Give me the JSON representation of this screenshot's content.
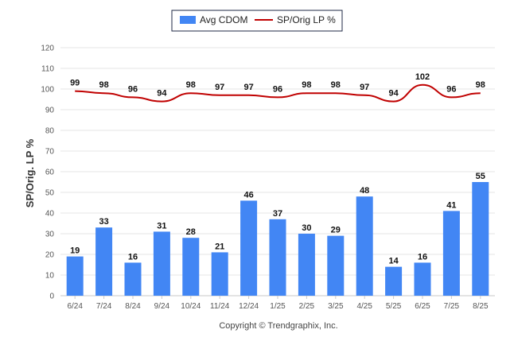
{
  "chart_data": {
    "type": "bar",
    "categories": [
      "6/24",
      "7/24",
      "8/24",
      "9/24",
      "10/24",
      "11/24",
      "12/24",
      "1/25",
      "2/25",
      "3/25",
      "4/25",
      "5/25",
      "6/25",
      "7/25",
      "8/25"
    ],
    "series": [
      {
        "name": "Avg CDOM",
        "type": "bar",
        "color": "#4286f4",
        "values": [
          19,
          33,
          16,
          31,
          28,
          21,
          46,
          37,
          30,
          29,
          48,
          14,
          16,
          41,
          55
        ]
      },
      {
        "name": "SP/Orig LP %",
        "type": "line",
        "color": "#c00000",
        "values": [
          99,
          98,
          96,
          94,
          98,
          97,
          97,
          96,
          98,
          98,
          97,
          94,
          102,
          96,
          98
        ]
      }
    ],
    "ylabel": "SP/Orig. LP %",
    "ylim": [
      0,
      120
    ],
    "yticks": [
      0,
      10,
      20,
      30,
      40,
      50,
      60,
      70,
      80,
      90,
      100,
      110,
      120
    ],
    "grid": true,
    "legend_position": "top-center"
  },
  "footer": {
    "copyright": "Copyright © Trendgraphix, Inc."
  }
}
